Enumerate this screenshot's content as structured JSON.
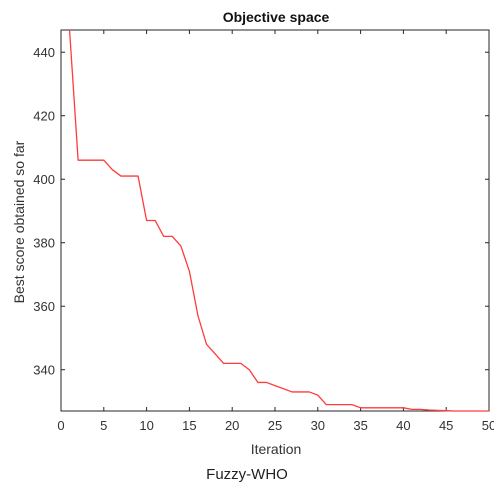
{
  "chart_data": {
    "type": "line",
    "title": "Objective space",
    "xlabel": "Iteration",
    "ylabel": "Best score obtained so far",
    "xlim": [
      0,
      50
    ],
    "ylim": [
      327,
      447
    ],
    "xticks": [
      0,
      5,
      10,
      15,
      20,
      25,
      30,
      35,
      40,
      45,
      50
    ],
    "yticks": [
      340,
      360,
      380,
      400,
      420,
      440
    ],
    "grid": false,
    "series": [
      {
        "color": "#ff3b3b",
        "x": [
          1,
          2,
          3,
          4,
          5,
          6,
          7,
          8,
          9,
          10,
          11,
          12,
          13,
          14,
          15,
          16,
          17,
          18,
          19,
          20,
          21,
          22,
          23,
          24,
          25,
          26,
          27,
          28,
          29,
          30,
          31,
          32,
          33,
          34,
          35,
          36,
          37,
          38,
          39,
          40,
          41,
          42,
          43,
          44,
          45,
          46,
          47,
          48,
          49,
          50
        ],
        "y": [
          447,
          406,
          406,
          406,
          406,
          403,
          401,
          401,
          401,
          387,
          387,
          382,
          382,
          379,
          371,
          357,
          348,
          345,
          342,
          342,
          342,
          340,
          336,
          336,
          335,
          334,
          333,
          333,
          333,
          332,
          329,
          329,
          329,
          329,
          328,
          328,
          328,
          328,
          328,
          328,
          327.5,
          327.5,
          327.3,
          327.2,
          327.1,
          327,
          327,
          327,
          327,
          327
        ]
      }
    ]
  },
  "caption": "Fuzzy-WHO"
}
